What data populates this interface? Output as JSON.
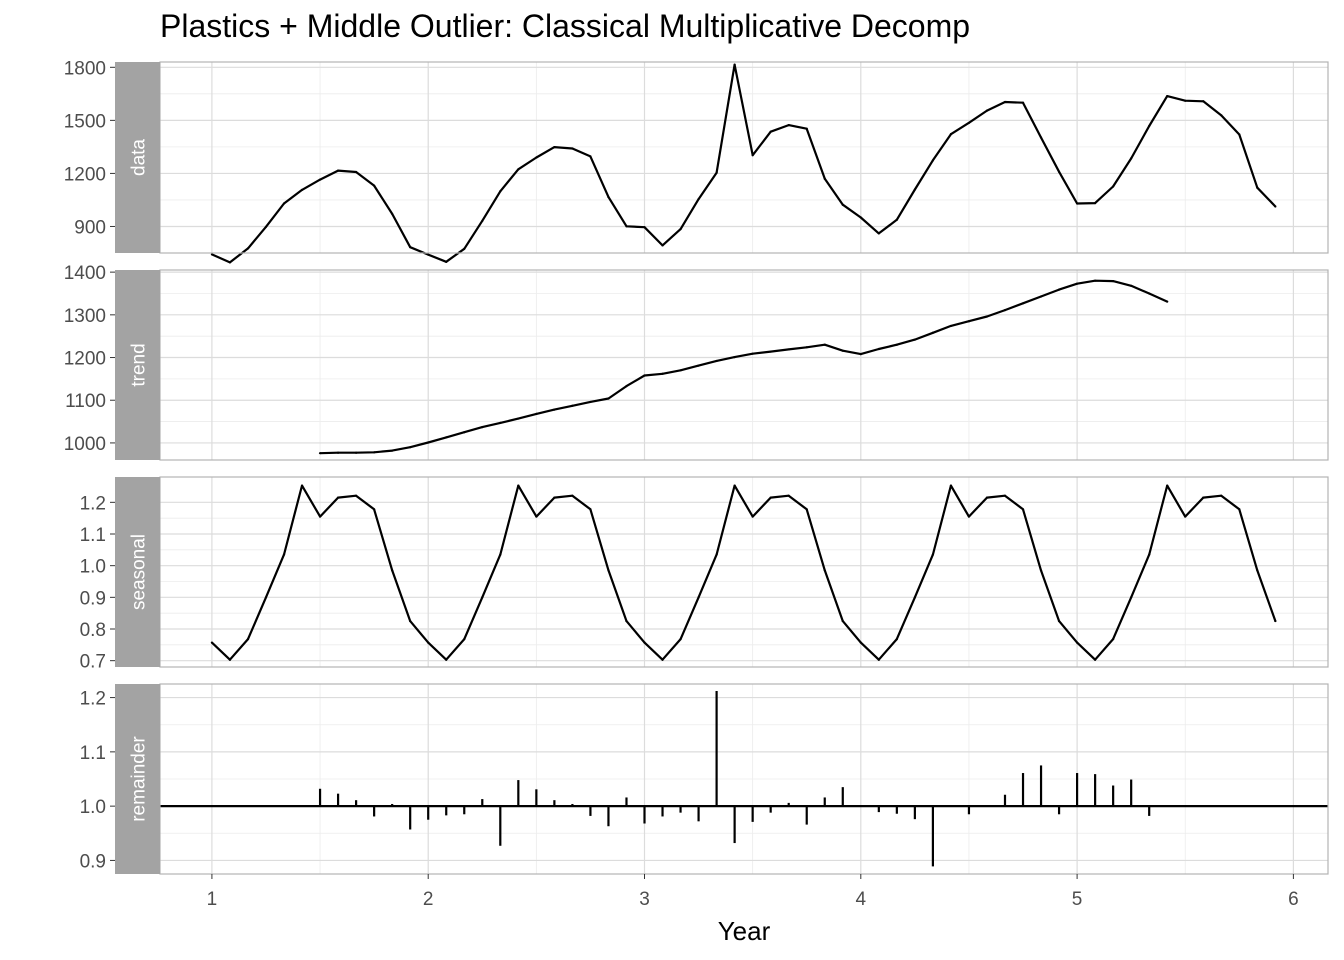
{
  "chart_data": {
    "type": "line",
    "title": "Plastics + Middle Outlier: Classical Multiplicative Decomp",
    "xlabel": "Year",
    "x_ticks": [
      1,
      2,
      3,
      4,
      5,
      6
    ],
    "xlim": [
      0.76,
      6.16
    ],
    "x_start": 1,
    "x_step": 0.0833333,
    "grid": true,
    "panels": [
      {
        "name": "data",
        "type": "line",
        "ylim": [
          750,
          1830
        ],
        "y_ticks": [
          900,
          1200,
          1500,
          1800
        ],
        "y_tick_labels": [
          "900",
          "1200",
          "1500",
          "1800"
        ],
        "values": [
          742,
          697,
          776,
          898,
          1030,
          1107,
          1165,
          1216,
          1208,
          1131,
          971,
          783,
          741,
          700,
          774,
          932,
          1099,
          1223,
          1290,
          1349,
          1341,
          1296,
          1066,
          901,
          896,
          793,
          885,
          1055,
          1204,
          1815,
          1303,
          1436,
          1473,
          1453,
          1170,
          1023,
          951,
          861,
          938,
          1109,
          1274,
          1422,
          1486,
          1555,
          1604,
          1600,
          1403,
          1209,
          1030,
          1032,
          1126,
          1285,
          1468,
          1637,
          1611,
          1608,
          1528,
          1420,
          1119,
          1013
        ]
      },
      {
        "name": "trend",
        "type": "line",
        "ylim": [
          960,
          1405
        ],
        "y_ticks": [
          1000,
          1100,
          1200,
          1300,
          1400
        ],
        "y_tick_labels": [
          "1000",
          "1100",
          "1200",
          "1300",
          "1400"
        ],
        "x_offset": 6,
        "values": [
          976,
          977,
          977,
          978,
          982,
          990,
          1001,
          1013,
          1025,
          1037,
          1047,
          1057,
          1068,
          1078,
          1087,
          1096,
          1104,
          1133,
          1158,
          1162,
          1170,
          1181,
          1192,
          1201,
          1209,
          1214,
          1219,
          1224,
          1230,
          1216,
          1208,
          1220,
          1230,
          1242,
          1258,
          1274,
          1285,
          1296,
          1311,
          1327,
          1343,
          1359,
          1373,
          1380,
          1379,
          1368,
          1350,
          1331
        ]
      },
      {
        "name": "seasonal",
        "type": "line",
        "ylim": [
          0.68,
          1.28
        ],
        "y_ticks": [
          0.7,
          0.8,
          0.9,
          1.0,
          1.1,
          1.2
        ],
        "y_tick_labels": [
          "0.7",
          "0.8",
          "0.9",
          "1.0",
          "1.1",
          "1.2"
        ],
        "values": [
          0.757,
          0.703,
          0.768,
          0.9,
          1.035,
          1.253,
          1.155,
          1.215,
          1.221,
          1.178,
          0.985,
          0.825,
          0.757,
          0.703,
          0.768,
          0.9,
          1.035,
          1.253,
          1.155,
          1.215,
          1.221,
          1.178,
          0.985,
          0.825,
          0.757,
          0.703,
          0.768,
          0.9,
          1.035,
          1.253,
          1.155,
          1.215,
          1.221,
          1.178,
          0.985,
          0.825,
          0.757,
          0.703,
          0.768,
          0.9,
          1.035,
          1.253,
          1.155,
          1.215,
          1.221,
          1.178,
          0.985,
          0.825,
          0.757,
          0.703,
          0.768,
          0.9,
          1.035,
          1.253,
          1.155,
          1.215,
          1.221,
          1.178,
          0.985,
          0.825
        ]
      },
      {
        "name": "remainder",
        "type": "bar",
        "baseline": 1.0,
        "ylim": [
          0.875,
          1.225
        ],
        "y_ticks": [
          0.9,
          1.0,
          1.1,
          1.2
        ],
        "y_tick_labels": [
          "0.9",
          "1.0",
          "1.1",
          "1.2"
        ],
        "x_offset": 6,
        "values": [
          1.032,
          1.023,
          1.011,
          0.981,
          1.004,
          0.957,
          0.975,
          0.983,
          0.985,
          1.013,
          0.927,
          1.048,
          1.031,
          1.011,
          1.004,
          0.982,
          0.963,
          1.016,
          0.968,
          0.981,
          0.988,
          0.972,
          1.212,
          0.932,
          0.971,
          0.988,
          1.006,
          0.966,
          1.016,
          1.035,
          1.0,
          0.989,
          0.986,
          0.976,
          0.889,
          1.0,
          0.985,
          1.0,
          1.021,
          1.061,
          1.075,
          0.985,
          1.061,
          1.059,
          1.038,
          1.049,
          0.982,
          1.0
        ]
      }
    ]
  }
}
